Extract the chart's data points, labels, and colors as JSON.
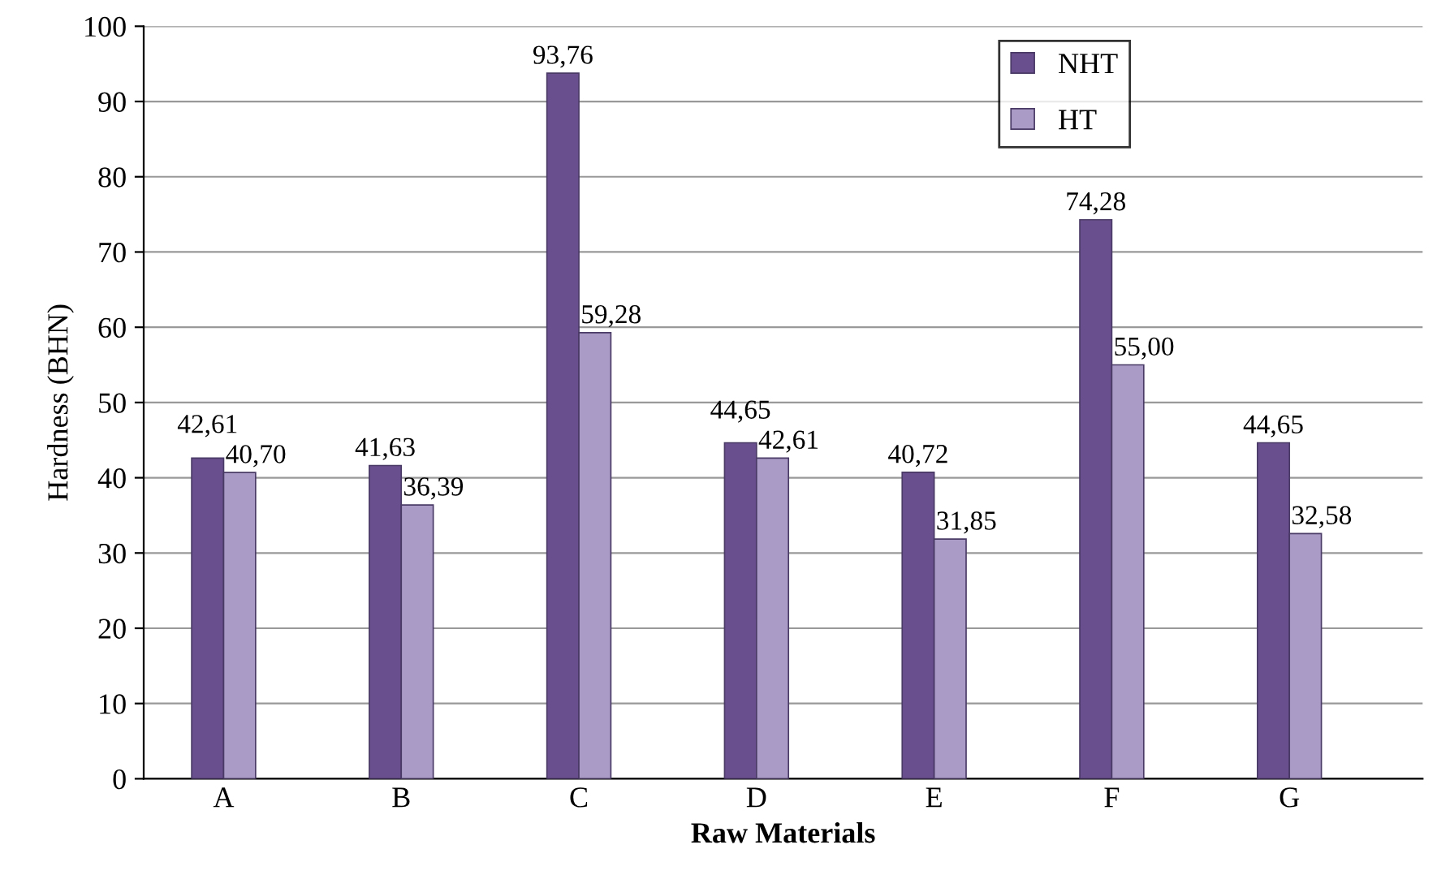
{
  "chart_data": {
    "type": "bar",
    "xlabel": "Raw Materials",
    "ylabel": "Hardness (BHN)",
    "categories": [
      "A",
      "B",
      "C",
      "D",
      "E",
      "F",
      "G"
    ],
    "series": [
      {
        "name": "NHT",
        "color": "#6a4f8f",
        "values": [
          42.61,
          41.63,
          93.76,
          44.65,
          40.72,
          74.28,
          44.65
        ],
        "value_labels": [
          "42,61",
          "41,63",
          "93,76",
          "44,65",
          "40,72",
          "74,28",
          "44,65"
        ]
      },
      {
        "name": "HT",
        "color": "#a99ac6",
        "values": [
          40.7,
          36.39,
          59.28,
          42.61,
          31.85,
          55.0,
          32.58
        ],
        "value_labels": [
          "40,70",
          "36,39",
          "59,28",
          "42,61",
          "31,85",
          "55,00",
          "32,58"
        ]
      }
    ],
    "ylim": [
      0,
      100
    ],
    "yticks": [
      0,
      10,
      20,
      30,
      40,
      50,
      60,
      70,
      80,
      90,
      100
    ],
    "grid": "y",
    "legend": "top"
  }
}
